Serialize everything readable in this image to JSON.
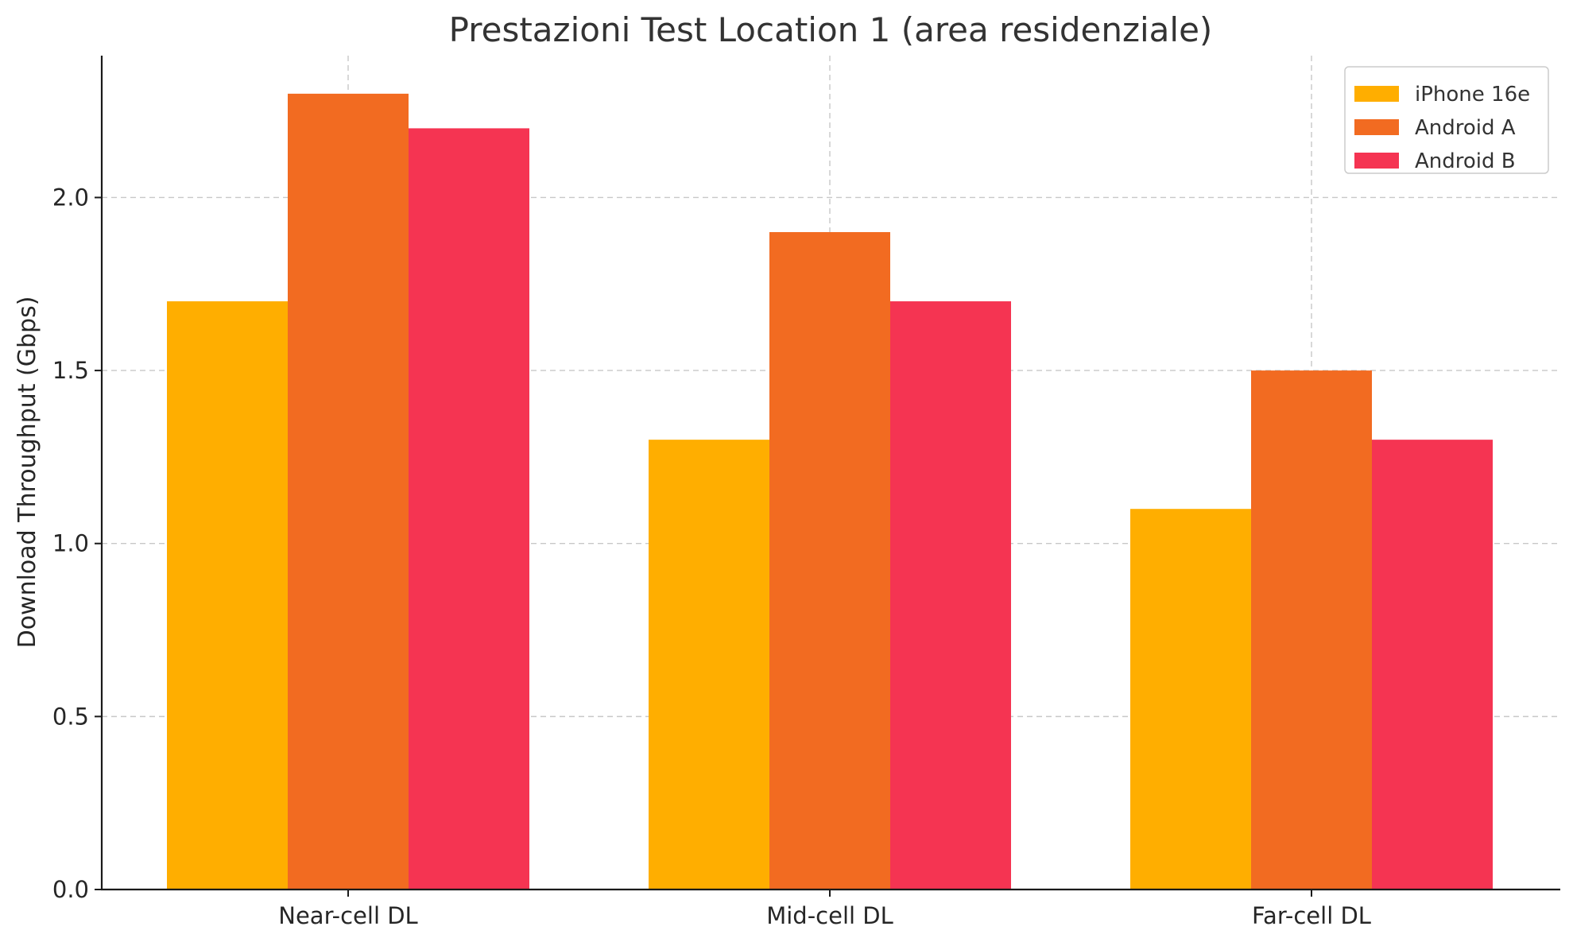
{
  "chart_data": {
    "type": "bar",
    "title": "Prestazioni Test Location 1 (area residenziale)",
    "xlabel": "",
    "ylabel": "Download Throughput (Gbps)",
    "categories": [
      "Near-cell DL",
      "Mid-cell DL",
      "Far-cell DL"
    ],
    "series": [
      {
        "name": "iPhone 16e",
        "color": "#FFAE00",
        "values": [
          1.7,
          1.3,
          1.1
        ]
      },
      {
        "name": "Android A",
        "color": "#F26B21",
        "values": [
          2.3,
          1.9,
          1.5
        ]
      },
      {
        "name": "Android B",
        "color": "#F53452",
        "values": [
          2.2,
          1.7,
          1.3
        ]
      }
    ],
    "ylim": [
      0,
      2.41
    ],
    "yticks": [
      0.0,
      0.5,
      1.0,
      1.5,
      2.0
    ],
    "ytick_labels": [
      "0.0",
      "0.5",
      "1.0",
      "1.5",
      "2.0"
    ],
    "grid": true,
    "legend_position": "top-right"
  }
}
